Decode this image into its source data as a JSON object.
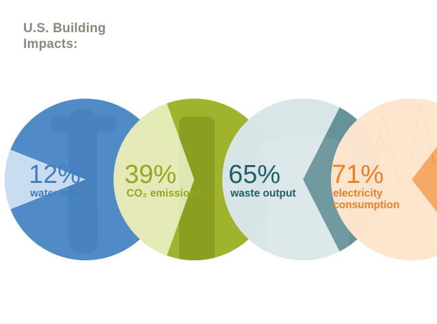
{
  "title": {
    "line1": "U.S. Building",
    "line2": "Impacts:"
  },
  "chart_data": {
    "type": "pie",
    "title": "U.S. Building Impacts:",
    "unit": "%",
    "series": [
      {
        "percent_label": "12%",
        "value": 12,
        "caption": [
          "water use"
        ],
        "color": "#3d7fc0"
      },
      {
        "percent_label": "39%",
        "value": 39,
        "caption": [
          "CO₂ emissions"
        ],
        "color": "#93a81f"
      },
      {
        "percent_label": "65%",
        "value": 65,
        "caption": [
          "waste output"
        ],
        "color": "#1f5d68"
      },
      {
        "percent_label": "71%",
        "value": 71,
        "caption": [
          "electricity",
          "consumption"
        ],
        "color": "#ef7f1f"
      }
    ]
  },
  "colors": {
    "title": "#8f867b",
    "slice_pale": [
      "#d6e5f4",
      "#edf0c8",
      "#dde8ea",
      "#fde6d0"
    ],
    "circle_base": [
      "#5b8fcd",
      "#a7bb2b",
      "#b7cfd3",
      "#fbd9b8"
    ]
  }
}
